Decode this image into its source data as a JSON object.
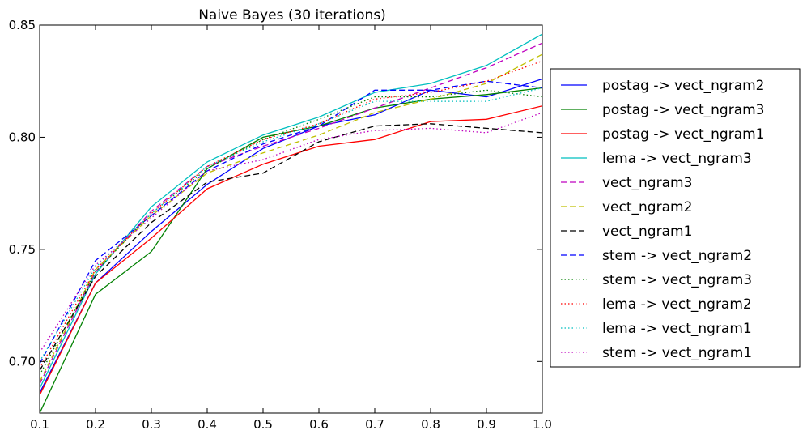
{
  "chart_data": {
    "type": "line",
    "title": "Naive Bayes (30 iterations)",
    "xlabel": "",
    "ylabel": "",
    "xlim": [
      0.1,
      1.0
    ],
    "ylim": [
      0.677,
      0.85
    ],
    "xticks": [
      "0.1",
      "0.2",
      "0.3",
      "0.4",
      "0.5",
      "0.6",
      "0.7",
      "0.8",
      "0.9",
      "1.0"
    ],
    "yticks": [
      "0.70",
      "0.75",
      "0.80",
      "0.85"
    ],
    "grid": false,
    "legend_position": "right",
    "x": [
      0.1,
      0.2,
      0.3,
      0.4,
      0.5,
      0.6,
      0.7,
      0.8,
      0.9,
      1.0
    ],
    "series": [
      {
        "name": "postag -> vect_ngram2",
        "color": "#0000ff",
        "dash": "solid",
        "values": [
          0.686,
          0.735,
          0.758,
          0.779,
          0.795,
          0.805,
          0.81,
          0.821,
          0.818,
          0.826
        ]
      },
      {
        "name": "postag -> vect_ngram3",
        "color": "#008000",
        "dash": "solid",
        "values": [
          0.677,
          0.73,
          0.749,
          0.786,
          0.8,
          0.805,
          0.813,
          0.817,
          0.819,
          0.822
        ]
      },
      {
        "name": "postag -> vect_ngram1",
        "color": "#ff0000",
        "dash": "solid",
        "values": [
          0.685,
          0.735,
          0.755,
          0.777,
          0.788,
          0.796,
          0.799,
          0.807,
          0.808,
          0.814
        ]
      },
      {
        "name": "lema -> vect_ngram3",
        "color": "#00bfbf",
        "dash": "solid",
        "values": [
          0.688,
          0.739,
          0.769,
          0.789,
          0.801,
          0.809,
          0.82,
          0.824,
          0.832,
          0.846
        ]
      },
      {
        "name": "vect_ngram3",
        "color": "#bf00bf",
        "dash": "dashed",
        "values": [
          0.69,
          0.74,
          0.767,
          0.787,
          0.796,
          0.804,
          0.813,
          0.822,
          0.831,
          0.842
        ]
      },
      {
        "name": "vect_ngram2",
        "color": "#bfbf00",
        "dash": "dashed",
        "values": [
          0.691,
          0.741,
          0.765,
          0.784,
          0.793,
          0.801,
          0.811,
          0.817,
          0.824,
          0.837
        ]
      },
      {
        "name": "vect_ngram1",
        "color": "#000000",
        "dash": "dashed",
        "values": [
          0.696,
          0.738,
          0.762,
          0.78,
          0.784,
          0.798,
          0.805,
          0.806,
          0.804,
          0.802
        ]
      },
      {
        "name": "stem -> vect_ngram2",
        "color": "#0000ff",
        "dash": "dashed",
        "values": [
          0.699,
          0.745,
          0.765,
          0.785,
          0.797,
          0.805,
          0.821,
          0.821,
          0.825,
          0.822
        ]
      },
      {
        "name": "stem -> vect_ngram3",
        "color": "#008000",
        "dash": "dotted",
        "values": [
          0.694,
          0.74,
          0.766,
          0.786,
          0.799,
          0.808,
          0.818,
          0.818,
          0.821,
          0.818
        ]
      },
      {
        "name": "lema -> vect_ngram2",
        "color": "#ff0000",
        "dash": "dotted",
        "values": [
          0.697,
          0.741,
          0.766,
          0.787,
          0.799,
          0.806,
          0.817,
          0.82,
          0.825,
          0.834
        ]
      },
      {
        "name": "lema -> vect_ngram1",
        "color": "#00bfbf",
        "dash": "dotted",
        "values": [
          0.7,
          0.742,
          0.766,
          0.787,
          0.798,
          0.806,
          0.816,
          0.816,
          0.816,
          0.822
        ]
      },
      {
        "name": "stem -> vect_ngram1",
        "color": "#bf00bf",
        "dash": "dotted",
        "values": [
          0.704,
          0.743,
          0.764,
          0.785,
          0.79,
          0.799,
          0.803,
          0.804,
          0.802,
          0.811
        ]
      }
    ]
  }
}
